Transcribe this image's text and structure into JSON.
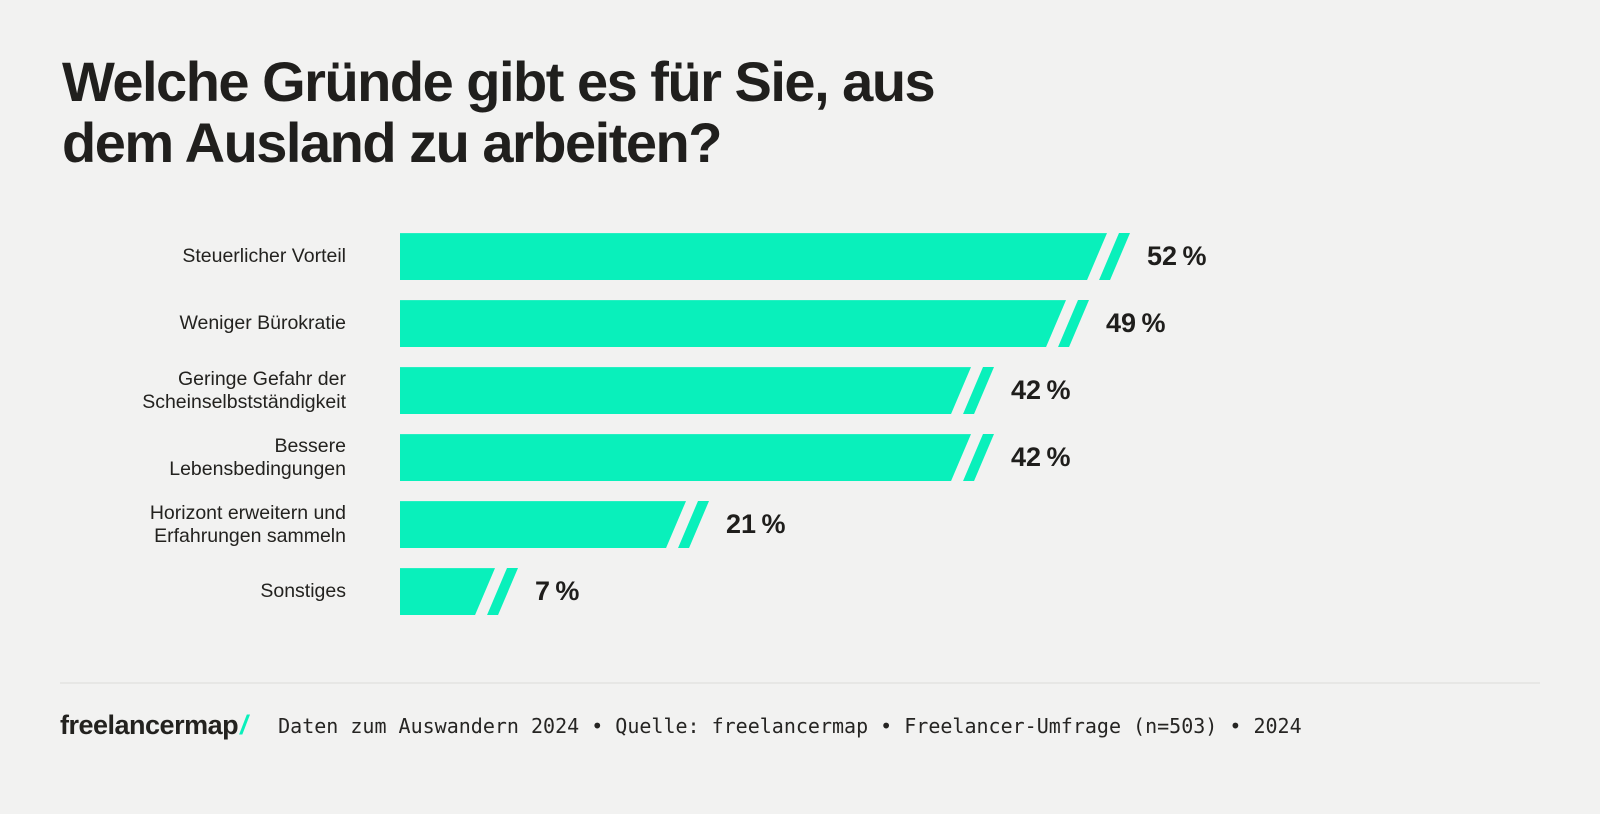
{
  "page": {
    "background_color": "#F2F2F1",
    "text_color": "#201F1D",
    "accent_color": "#09F0BB"
  },
  "header": {
    "title": "Welche Gründe gibt es für Sie, aus\ndem Ausland zu arbeiten?"
  },
  "chart_data": {
    "type": "bar",
    "orientation": "horizontal",
    "title": "Welche Gründe gibt es für Sie, aus dem Ausland zu arbeiten?",
    "unit": "%",
    "xlim": [
      0,
      52
    ],
    "grid": false,
    "legend": false,
    "bar_color": "#09F0BB",
    "categories": [
      "Steuerlicher Vorteil",
      "Weniger Bürokratie",
      "Geringe Gefahr der Scheinselbstständigkeit",
      "Bessere Lebensbedingungen",
      "Horizont erweitern und Erfahrungen sammeln",
      "Sonstiges"
    ],
    "label_lines": [
      [
        "Steuerlicher Vorteil"
      ],
      [
        "Weniger Bürokratie"
      ],
      [
        "Geringe Gefahr der",
        "Scheinselbstständigkeit"
      ],
      [
        "Bessere",
        "Lebensbedingungen"
      ],
      [
        "Horizont erweitern und",
        "Erfahrungen sammeln"
      ],
      [
        "Sonstiges"
      ]
    ],
    "values": [
      52,
      49,
      42,
      42,
      21,
      7
    ],
    "value_labels": [
      "52 %",
      "49 %",
      "42 %",
      "42 %",
      "21 %",
      "7 %"
    ]
  },
  "footer": {
    "logo_text": "freelancermap",
    "logo_slash": "/",
    "source": "Daten zum Auswandern 2024 • Quelle: freelancermap • Freelancer-Umfrage (n=503) • 2024"
  }
}
